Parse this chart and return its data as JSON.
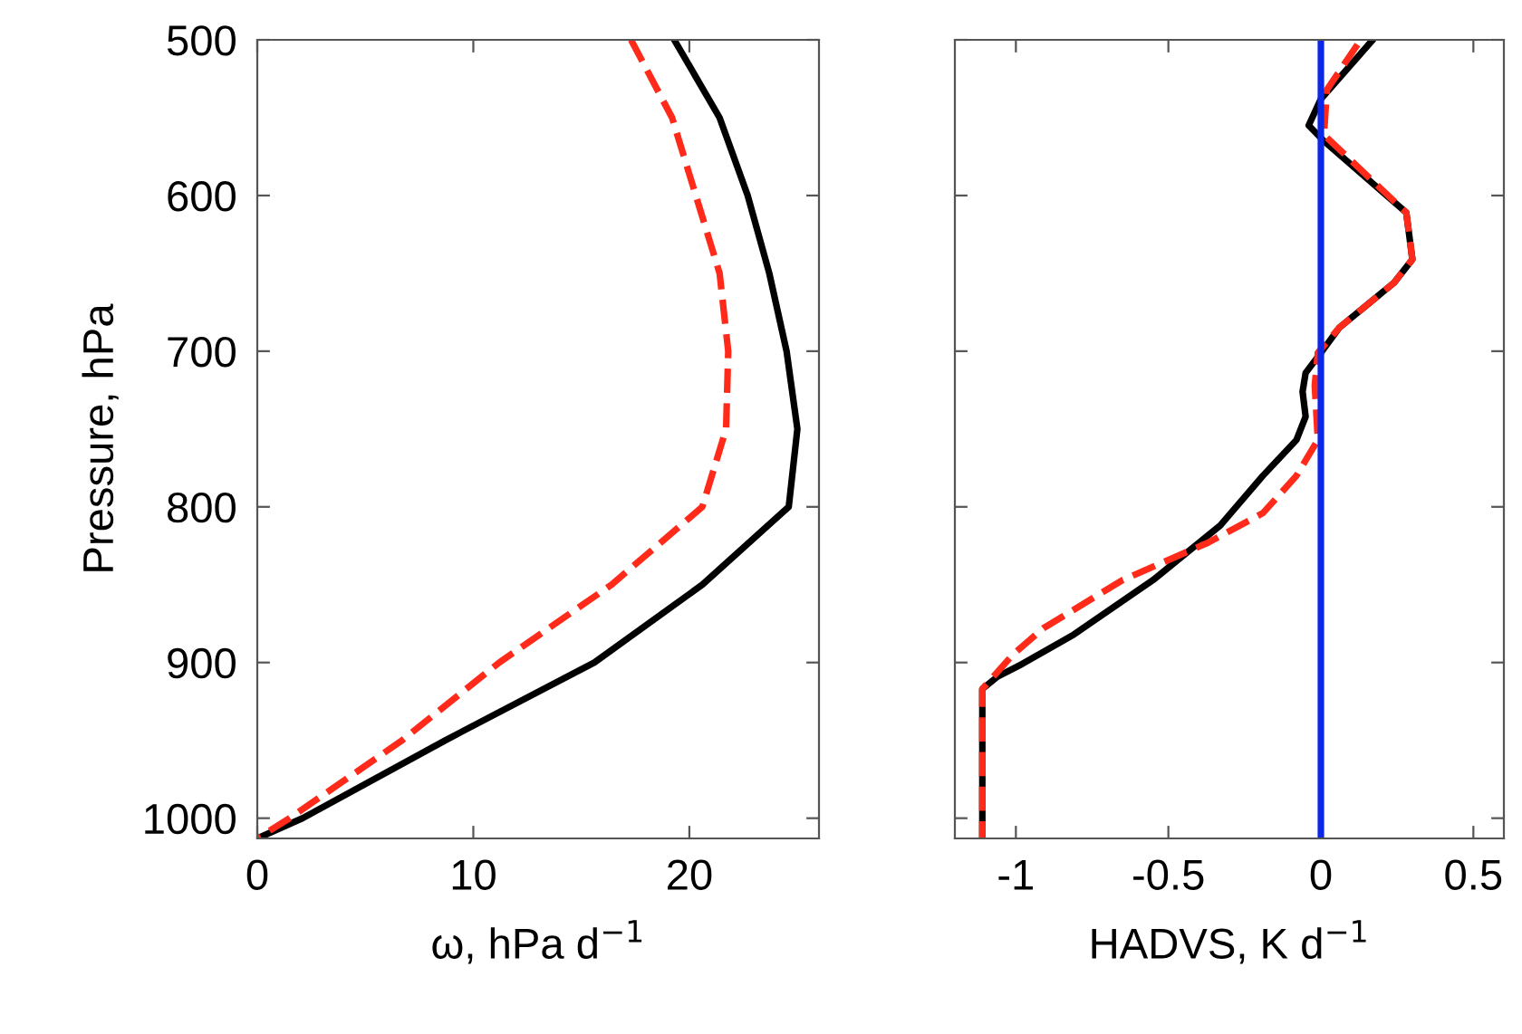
{
  "chart_data": [
    {
      "type": "line",
      "xlabel": "ω, hPa d$^{−1}$",
      "ylabel": "Pressure, hPa",
      "xlim": [
        0,
        26
      ],
      "xticks": [
        0,
        10,
        20
      ],
      "ylim": [
        1013,
        500
      ],
      "yticks": [
        500,
        600,
        700,
        800,
        900,
        1000
      ],
      "series": [
        {
          "color": "#000000",
          "line_style": "solid",
          "x": [
            19.3,
            21.4,
            22.7,
            23.7,
            24.5,
            25.0,
            24.6,
            20.6,
            15.6,
            8.7,
            2.1,
            0
          ],
          "values": [
            500,
            550,
            600,
            650,
            700,
            750,
            800,
            850,
            900,
            950,
            1000,
            1013
          ]
        },
        {
          "color": "#ff2a1a",
          "line_style": "dashed",
          "x": [
            17.3,
            19.2,
            20.3,
            21.4,
            21.8,
            21.7,
            20.6,
            16.4,
            11.2,
            6.7,
            1.5,
            0
          ],
          "values": [
            500,
            550,
            600,
            650,
            700,
            750,
            800,
            850,
            900,
            950,
            1000,
            1013
          ]
        }
      ]
    },
    {
      "type": "line",
      "xlabel": "HADVS, K d$^{−1}$",
      "xlim": [
        -1.2,
        0.6
      ],
      "xticks": [
        -1,
        -0.5,
        0,
        0.5
      ],
      "ylim": [
        1013,
        500
      ],
      "yticks": [
        500,
        600,
        700,
        800,
        900,
        1000
      ],
      "tick_labels": "x",
      "ref_lines": [
        {
          "axis": "x",
          "value": 0,
          "color": "#0a28e6",
          "line_style": "solid"
        }
      ],
      "series": [
        {
          "color": "#000000",
          "line_style": "solid",
          "x": [
            0.17,
            0.0,
            -0.04,
            0.01,
            0.28,
            0.3,
            0.24,
            0.06,
            0.0,
            -0.05,
            -0.06,
            -0.05,
            -0.08,
            -0.19,
            -0.33,
            -0.55,
            -0.81,
            -0.98,
            -1.06,
            -1.11,
            -1.11
          ],
          "values": [
            500,
            538,
            555,
            565,
            611,
            641,
            656,
            685,
            701,
            714,
            726,
            742,
            757,
            780,
            812,
            847,
            882,
            901,
            909,
            917,
            1013
          ]
        },
        {
          "color": "#ff2a1a",
          "line_style": "dashed",
          "x": [
            0.12,
            0.02,
            0.01,
            0.28,
            0.3,
            0.24,
            0.06,
            -0.01,
            -0.02,
            -0.01,
            -0.08,
            -0.19,
            -0.37,
            -0.65,
            -0.91,
            -1.01,
            -1.11,
            -1.11
          ],
          "values": [
            503,
            532,
            561,
            611,
            641,
            656,
            685,
            701,
            722,
            757,
            780,
            804,
            823,
            847,
            878,
            895,
            917,
            1013
          ]
        }
      ]
    }
  ]
}
